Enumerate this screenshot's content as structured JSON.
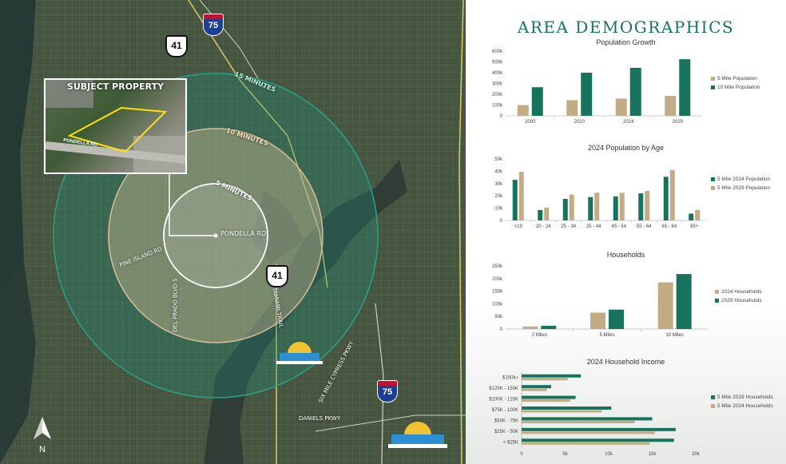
{
  "colors": {
    "tan": "#c2ac86",
    "green": "#17735c",
    "title": "#17735c"
  },
  "header": {
    "title": "AREA DEMOGRAPHICS"
  },
  "map": {
    "subject_label": "SUBJECT PROPERTY",
    "photo_road_label": "PONDELLA RD",
    "rings": [
      "15 MINUTES",
      "10 MINUTES",
      "5 MINUTES"
    ],
    "roads": {
      "pondella": "PONDELLA RD",
      "pine_island": "PINE ISLAND RD",
      "del_prado": "DEL PRADO BLVD S",
      "tamiami": "S TAMIAMI TRAIL",
      "cypress": "SIX MILE CYPRESS PKWY",
      "daniels": "DANIELS PKWY"
    },
    "shields": {
      "us41": "41",
      "i75": "75",
      "interstate": "INTERSTATE"
    },
    "compass": "N",
    "icons": [
      "compass-icon",
      "airport-logo-icon",
      "us41-shield-icon",
      "i75-shield-icon"
    ]
  },
  "chart_data": [
    {
      "type": "bar",
      "title": "Population Growth",
      "categories": [
        "2000",
        "2020",
        "2024",
        "2029"
      ],
      "series": [
        {
          "name": "5 Mile Population",
          "color": "#c2ac86",
          "values": [
            100000,
            145000,
            160000,
            185000
          ]
        },
        {
          "name": "10 Mile Population",
          "color": "#17735c",
          "values": [
            265000,
            400000,
            445000,
            525000
          ]
        }
      ],
      "ylim": [
        0,
        600000
      ],
      "yticks": [
        "0",
        "100k",
        "200k",
        "300k",
        "400k",
        "500k",
        "600k"
      ],
      "legend": "right"
    },
    {
      "type": "bar",
      "title": "2024 Population by Age",
      "categories": [
        "<19",
        "20 - 24",
        "25 - 34",
        "35 - 44",
        "45 - 54",
        "55 - 64",
        "65 - 84",
        "85+"
      ],
      "series": [
        {
          "name": "5 Mile 2024 Population",
          "color": "#17735c",
          "values": [
            33000,
            8500,
            17500,
            19000,
            19500,
            22000,
            35500,
            5500
          ]
        },
        {
          "name": "5 Mile 2029 Population",
          "color": "#c2ac86",
          "values": [
            39500,
            10500,
            21000,
            22500,
            22500,
            24000,
            41000,
            8500
          ]
        }
      ],
      "ylim": [
        0,
        50000
      ],
      "yticks": [
        "0",
        "10k",
        "20k",
        "30k",
        "40k",
        "50k"
      ],
      "legend": "right"
    },
    {
      "type": "bar",
      "title": "Households",
      "categories": [
        "2 Miles",
        "5 Miles",
        "10 Miles"
      ],
      "series": [
        {
          "name": "2024 Households",
          "color": "#c2ac86",
          "values": [
            10000,
            65000,
            185000
          ]
        },
        {
          "name": "2029 Households",
          "color": "#17735c",
          "values": [
            13000,
            77000,
            218000
          ]
        }
      ],
      "ylim": [
        0,
        250000
      ],
      "yticks": [
        "0",
        "50k",
        "100k",
        "150k",
        "200k",
        "250k"
      ],
      "legend": "right"
    },
    {
      "type": "bar",
      "orientation": "horizontal",
      "title": "2024 Household Income",
      "categories": [
        "$150k+",
        "$125K - 150K",
        "$100K - 125K",
        "$75K - 100K",
        "$50K - 75K",
        "$25K - 50K",
        "< $25K"
      ],
      "series": [
        {
          "name": "5 Mile 2029 Households",
          "color": "#17735c",
          "values": [
            6800,
            3400,
            6200,
            10300,
            15000,
            17700,
            17500
          ]
        },
        {
          "name": "5 Mile 2024 Households",
          "color": "#c2ac86",
          "values": [
            5300,
            2900,
            5600,
            9200,
            13000,
            15300,
            14700
          ]
        }
      ],
      "xlim": [
        0,
        20000
      ],
      "xticks": [
        "0",
        "5k",
        "10k",
        "15k",
        "20k"
      ],
      "legend": "right"
    }
  ]
}
